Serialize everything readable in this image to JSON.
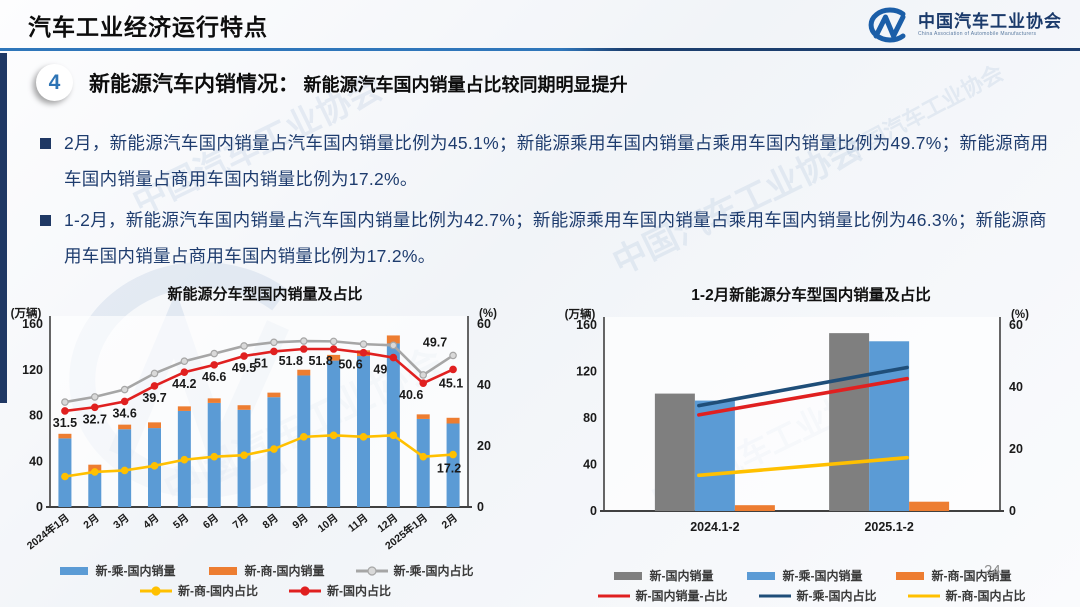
{
  "header": {
    "title": "汽车工业经济运行特点",
    "logo": {
      "mark": "CM-swoosh",
      "name": "中国汽车工业协会",
      "caption": "China Association of Automobile Manufacturers"
    }
  },
  "section": {
    "number": "4",
    "title": "新能源汽车内销情况：",
    "subtitle": "新能源汽车国内销量占比较同期明显提升"
  },
  "bullets": [
    {
      "text": "2月，新能源汽车国内销量占汽车国内销量比例为45.1%；新能源乘用车国内销量占乘用车国内销量比例为49.7%；新能源商用车国内销量占商用车国内销量比例为17.2%。"
    },
    {
      "text": "1-2月，新能源汽车国内销量占汽车国内销量比例为42.7%；新能源乘用车国内销量占乘用车国内销量比例为46.3%；新能源商用车国内销量占商用车国内销量比例为17.2%。"
    }
  ],
  "watermark_text": "中国汽车工业协会",
  "page_number": "24",
  "colors": {
    "accent_blue": "#2e74b5",
    "navy": "#1f3864",
    "bar_blue": "#5B9BD5",
    "bar_orange": "#ED7D31",
    "bar_gray": "#7F7F7F",
    "line_gray": "#A6A6A6",
    "line_red": "#E02020",
    "line_yellow": "#FFC000",
    "line_navy": "#1F4E79"
  },
  "chart_data": [
    {
      "type": "bar",
      "subtype": "stacked-bar-with-lines",
      "title": "新能源分车型国内销量及占比",
      "left_axis": {
        "label": "(万辆)",
        "max": 160,
        "ticks": [
          0,
          40,
          80,
          120,
          160
        ]
      },
      "right_axis": {
        "label": "(%)",
        "max": 60,
        "ticks": [
          0,
          20,
          40,
          60
        ]
      },
      "categories": [
        "2024年1月",
        "2月",
        "3月",
        "4月",
        "5月",
        "6月",
        "7月",
        "8月",
        "9月",
        "10月",
        "11月",
        "12月",
        "2025年1月",
        "2月"
      ],
      "bar_series": [
        {
          "name": "新-乘-国内销量",
          "color": "#5B9BD5",
          "axis": "left",
          "values": [
            60,
            31,
            68,
            69,
            84,
            91,
            85,
            96,
            115,
            128,
            132,
            143,
            77,
            73
          ]
        },
        {
          "name": "新-商-国内销量",
          "color": "#ED7D31",
          "axis": "left",
          "stacked": true,
          "values": [
            4,
            6,
            4,
            5,
            4,
            4,
            4,
            4,
            5,
            5,
            5,
            7,
            4,
            5
          ]
        }
      ],
      "line_series": [
        {
          "name": "新-乘-国内占比",
          "color": "#A6A6A6",
          "marker_fill": "#d9d9d9",
          "axis": "right",
          "values": [
            34.4,
            36.1,
            38.5,
            43.8,
            47.8,
            50.3,
            52.8,
            54.0,
            54.4,
            54.3,
            53.4,
            53.0,
            43.3,
            49.7
          ],
          "end_label": "49.7"
        },
        {
          "name": "新-国内占比",
          "color": "#E02020",
          "marker_fill": "#E02020",
          "axis": "right",
          "values": [
            31.5,
            32.7,
            34.6,
            39.7,
            44.2,
            46.6,
            49.5,
            51,
            51.8,
            51.8,
            50.6,
            49,
            40.6,
            45.1
          ],
          "point_labels": [
            "31.5",
            "32.7",
            "34.6",
            "39.7",
            "44.2",
            "46.6",
            "49.5",
            "51",
            "51.8",
            "51.8",
            "50.6",
            "49",
            "40.6",
            "45.1"
          ]
        },
        {
          "name": "新-商-国内占比",
          "color": "#FFC000",
          "marker_fill": "#FFC000",
          "axis": "right",
          "values": [
            10,
            11.5,
            12,
            13.5,
            15.5,
            16.5,
            17,
            19,
            23,
            23.5,
            23,
            23.5,
            16.5,
            17.2
          ],
          "end_label": "17.2"
        }
      ],
      "legend_rows": [
        [
          {
            "swatch": "bar",
            "color": "#5B9BD5",
            "label": "新-乘-国内销量"
          },
          {
            "swatch": "bar",
            "color": "#ED7D31",
            "label": "新-商-国内销量"
          },
          {
            "swatch": "line-dot",
            "color": "#A6A6A6",
            "dot": "#d9d9d9",
            "label": "新-乘-国内占比"
          }
        ],
        [
          {
            "swatch": "line-dot",
            "color": "#FFC000",
            "dot": "#FFC000",
            "label": "新-商-国内占比"
          },
          {
            "swatch": "line-dot",
            "color": "#E02020",
            "dot": "#E02020",
            "label": "新-国内占比"
          }
        ]
      ]
    },
    {
      "type": "bar",
      "subtype": "grouped-bar-with-lines",
      "title": "1-2月新能源分车型国内销量及占比",
      "left_axis": {
        "label": "(万辆)",
        "max": 160,
        "ticks": [
          0,
          40,
          80,
          120,
          160
        ]
      },
      "right_axis": {
        "label": "(%)",
        "max": 60,
        "ticks": [
          0,
          20,
          40,
          60
        ]
      },
      "categories": [
        "2024.1-2",
        "2025.1-2"
      ],
      "bar_series": [
        {
          "name": "新-国内销量",
          "color": "#7F7F7F",
          "axis": "left",
          "values": [
            101,
            153
          ]
        },
        {
          "name": "新-乘-国内销量",
          "color": "#5B9BD5",
          "axis": "left",
          "values": [
            95,
            146
          ]
        },
        {
          "name": "新-商-国内销量",
          "color": "#ED7D31",
          "axis": "left",
          "values": [
            5,
            8
          ]
        }
      ],
      "line_series": [
        {
          "name": "新-乘-国内占比",
          "color": "#1F4E79",
          "axis": "right",
          "values": [
            34.0,
            46.3
          ]
        },
        {
          "name": "新-国内销量-占比",
          "color": "#E02020",
          "axis": "right",
          "values": [
            31.0,
            42.7
          ]
        },
        {
          "name": "新-商-国内占比",
          "color": "#FFC000",
          "axis": "right",
          "values": [
            11.5,
            17.2
          ]
        }
      ],
      "legend_rows": [
        [
          {
            "swatch": "bar",
            "color": "#7F7F7F",
            "label": "新-国内销量"
          },
          {
            "swatch": "bar",
            "color": "#5B9BD5",
            "label": "新-乘-国内销量"
          },
          {
            "swatch": "bar",
            "color": "#ED7D31",
            "label": "新-商-国内销量"
          }
        ],
        [
          {
            "swatch": "line",
            "color": "#E02020",
            "label": "新-国内销量-占比"
          },
          {
            "swatch": "line",
            "color": "#1F4E79",
            "label": "新-乘-国内占比"
          },
          {
            "swatch": "line",
            "color": "#FFC000",
            "label": "新-商-国内占比"
          }
        ]
      ]
    }
  ]
}
